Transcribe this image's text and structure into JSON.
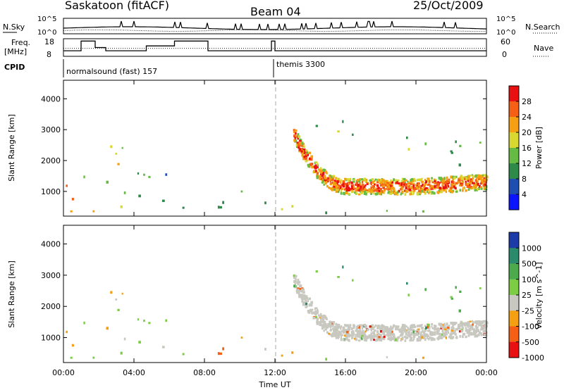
{
  "header": {
    "title": "Saskatoon (fitACF)",
    "beam": "Beam 04",
    "date": "25/Oct/2009"
  },
  "strips": {
    "nsky_label": "N.Sky",
    "nsearch_label": "N.Search",
    "nsky_ticks": [
      "10^5",
      "10^0"
    ],
    "nsearch_ticks": [
      "10^5",
      "10^0"
    ],
    "freq_label_1": "Freq.",
    "freq_label_2": "[MHz]",
    "freq_ticks": [
      "18",
      "8"
    ],
    "nave_label": "Nave",
    "nave_ticks": [
      "60",
      "0"
    ],
    "cpid_label": "CPID",
    "cpid_entries": [
      "normalsound (fast) 157",
      "themis 3300"
    ]
  },
  "chart_data": [
    {
      "type": "heatmap",
      "name": "power",
      "ylabel": "Slant Range [km]",
      "y_ticks": [
        1000,
        2000,
        3000,
        4000
      ],
      "ylim": [
        200,
        4600
      ],
      "colorbar_label": "Power [dB]",
      "colorbar_ticks": [
        "4",
        "8",
        "12",
        "16",
        "20",
        "24",
        "28"
      ],
      "colors": [
        "#0a14ff",
        "#1e4fb0",
        "#2e8a48",
        "#66bb44",
        "#d8d830",
        "#f5a012",
        "#f56014",
        "#e81010"
      ]
    },
    {
      "type": "heatmap",
      "name": "velocity",
      "ylabel": "Slant Range [km]",
      "y_ticks": [
        1000,
        2000,
        3000,
        4000
      ],
      "ylim": [
        200,
        4600
      ],
      "colorbar_label": "Velocity [m s^-1]",
      "colorbar_ticks": [
        "1000",
        "500",
        "100",
        "25",
        "-25",
        "-100",
        "-500",
        "-1000"
      ],
      "colors": [
        "#1c3aa8",
        "#2c8a6c",
        "#4caa4c",
        "#7ccd44",
        "#c8c8c0",
        "#f5a012",
        "#f56014",
        "#e81010"
      ],
      "xlabel": "Time UT",
      "x_ticks": [
        "00:00",
        "04:00",
        "08:00",
        "12:00",
        "16:00",
        "20:00",
        "00:00"
      ]
    }
  ]
}
